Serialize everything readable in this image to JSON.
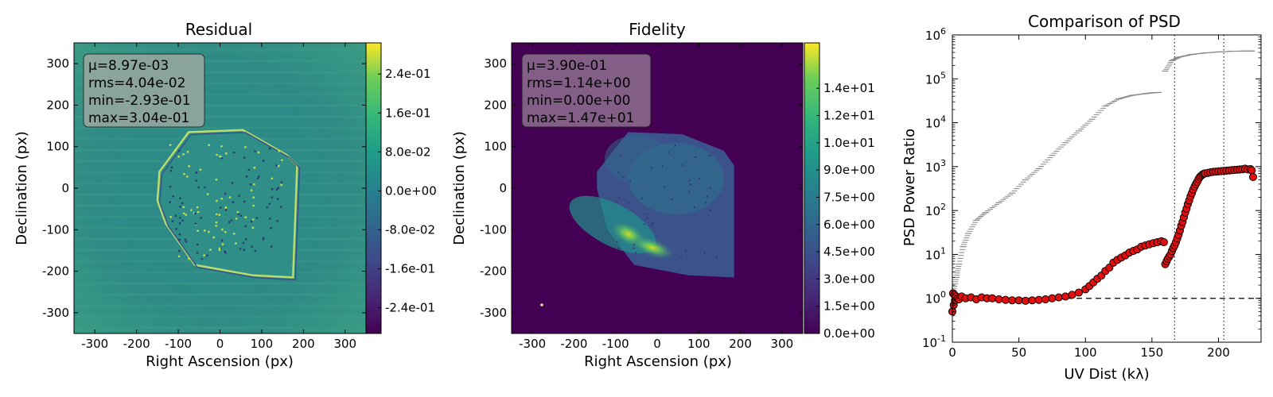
{
  "chart_data": [
    {
      "type": "heatmap",
      "title": "Residual",
      "xlabel": "Right Ascension (px)",
      "ylabel": "Declination (px)",
      "xlim": [
        -350,
        350
      ],
      "ylim": [
        -350,
        350
      ],
      "xticks": [
        "-300",
        "-200",
        "-100",
        "0",
        "100",
        "200",
        "300"
      ],
      "yticks": [
        "-300",
        "-200",
        "-100",
        "0",
        "100",
        "200",
        "300"
      ],
      "colormap": "viridis",
      "colorbar": {
        "range": [
          -0.293,
          0.304
        ],
        "ticks": [
          {
            "value": -0.24,
            "label": "-2.4e-01"
          },
          {
            "value": -0.16,
            "label": "-1.6e-01"
          },
          {
            "value": -0.08,
            "label": "-8.0e-02"
          },
          {
            "value": 0.0,
            "label": "0.0e+00"
          },
          {
            "value": 0.08,
            "label": "8.0e-02"
          },
          {
            "value": 0.16,
            "label": "1.6e-01"
          },
          {
            "value": 0.24,
            "label": "2.4e-01"
          }
        ]
      },
      "stats": [
        "μ=8.97e-03",
        "rms=4.04e-02",
        "min=-2.93e-01",
        "max=3.04e-01"
      ],
      "stats_box_color": "#9aa9a0",
      "background_color": "#2f8a86",
      "mosaic_outline": [
        [
          -145,
          40
        ],
        [
          -75,
          135
        ],
        [
          55,
          140
        ],
        [
          160,
          80
        ],
        [
          185,
          55
        ],
        [
          175,
          -215
        ],
        [
          80,
          -210
        ],
        [
          -60,
          -185
        ],
        [
          -130,
          -85
        ],
        [
          -150,
          -30
        ]
      ]
    },
    {
      "type": "heatmap",
      "title": "Fidelity",
      "xlabel": "Right Ascension (px)",
      "ylabel": "Declination (px)",
      "xlim": [
        -350,
        350
      ],
      "ylim": [
        -350,
        350
      ],
      "xticks": [
        "-300",
        "-200",
        "-100",
        "0",
        "100",
        "200",
        "300"
      ],
      "yticks": [
        "-300",
        "-200",
        "-100",
        "0",
        "100",
        "200",
        "300"
      ],
      "colormap": "viridis",
      "colorbar": {
        "range": [
          0,
          16
        ],
        "ticks": [
          {
            "value": 0.0,
            "label": "0.0e+00"
          },
          {
            "value": 1.5,
            "label": "1.5e+00"
          },
          {
            "value": 3.0,
            "label": "3.0e+00"
          },
          {
            "value": 4.5,
            "label": "4.5e+00"
          },
          {
            "value": 6.0,
            "label": "6.0e+00"
          },
          {
            "value": 7.5,
            "label": "7.5e+00"
          },
          {
            "value": 9.0,
            "label": "9.0e+00"
          },
          {
            "value": 10.5,
            "label": "1.0e+01"
          },
          {
            "value": 12.0,
            "label": "1.2e+01"
          },
          {
            "value": 13.5,
            "label": "1.4e+01"
          }
        ]
      },
      "stats": [
        "μ=3.90e-01",
        "rms=1.14e+00",
        "min=0.00e+00",
        "max=1.47e+01"
      ],
      "stats_box_color": "#8a6a8e",
      "background_color": "#440154",
      "mosaic_outline": [
        [
          -145,
          40
        ],
        [
          -70,
          135
        ],
        [
          60,
          130
        ],
        [
          160,
          90
        ],
        [
          185,
          55
        ],
        [
          185,
          -215
        ],
        [
          75,
          -210
        ],
        [
          -55,
          -185
        ],
        [
          -120,
          -100
        ],
        [
          -145,
          0
        ]
      ]
    },
    {
      "type": "scatter",
      "title": "Comparison of PSD",
      "xlabel": "UV Dist (kλ)",
      "ylabel": "PSD Power Ratio",
      "xlim": [
        0,
        232
      ],
      "ylim": [
        0.1,
        1000000
      ],
      "yscale": "log",
      "xticks": [
        0,
        50,
        100,
        150,
        200
      ],
      "yticks": [
        {
          "mant": "10",
          "exp": "-1"
        },
        {
          "mant": "10",
          "exp": "0"
        },
        {
          "mant": "10",
          "exp": "1"
        },
        {
          "mant": "10",
          "exp": "2"
        },
        {
          "mant": "10",
          "exp": "3"
        },
        {
          "mant": "10",
          "exp": "4"
        },
        {
          "mant": "10",
          "exp": "5"
        },
        {
          "mant": "10",
          "exp": "6"
        }
      ],
      "reference_line_y": 1,
      "vertical_lines_x": [
        167,
        204
      ],
      "gray_series": {
        "color": "#888888",
        "x": [
          1,
          3,
          5,
          8,
          12,
          18,
          25,
          35,
          45,
          55,
          65,
          75,
          85,
          95,
          105,
          115,
          125,
          135,
          145,
          150,
          155,
          160,
          165,
          170,
          180,
          190,
          200,
          210,
          220,
          225
        ],
        "y": [
          1.5,
          3,
          6,
          15,
          30,
          60,
          90,
          150,
          250,
          500,
          900,
          1800,
          3500,
          6500,
          12000,
          24000,
          35000,
          42000,
          46000,
          48000,
          49000,
          150000,
          260000,
          310000,
          360000,
          390000,
          410000,
          425000,
          430000,
          430000
        ]
      },
      "red_series": {
        "color": "#e01010",
        "x": [
          0,
          0.5,
          1,
          1.5,
          2,
          3,
          4,
          5,
          7,
          10,
          14,
          18,
          22,
          26,
          30,
          35,
          40,
          45,
          50,
          55,
          60,
          65,
          70,
          75,
          80,
          85,
          90,
          95,
          100,
          103,
          106,
          109,
          112,
          115,
          118,
          121,
          124,
          127,
          130,
          133,
          136,
          139,
          142,
          145,
          148,
          151,
          154,
          157,
          159,
          160,
          161,
          162,
          163,
          164,
          165,
          166,
          167,
          168,
          169,
          170,
          171,
          172,
          173,
          174,
          175,
          176,
          177,
          178,
          179,
          180,
          181,
          182,
          183,
          184,
          185,
          186,
          187,
          188,
          189,
          190,
          192,
          194,
          196,
          198,
          200,
          202,
          204,
          206,
          208,
          210,
          212,
          214,
          216,
          218,
          220,
          222,
          224,
          225,
          226
        ],
        "y": [
          0.5,
          1.3,
          0.7,
          1.2,
          0.9,
          1.1,
          1.0,
          0.95,
          1.1,
          1.0,
          1.05,
          0.95,
          1.05,
          1.0,
          1.0,
          0.95,
          0.92,
          0.9,
          0.9,
          0.88,
          0.9,
          0.92,
          0.95,
          1.0,
          1.05,
          1.1,
          1.2,
          1.35,
          1.6,
          1.9,
          2.3,
          2.8,
          3.3,
          4.2,
          5.0,
          6.5,
          7.5,
          8.5,
          9.5,
          11,
          12,
          13,
          15,
          16,
          17,
          18,
          19,
          20,
          19,
          6,
          7,
          8,
          9,
          10,
          12,
          14,
          16,
          19,
          23,
          28,
          35,
          45,
          55,
          70,
          90,
          110,
          140,
          170,
          210,
          250,
          300,
          350,
          400,
          450,
          520,
          580,
          620,
          660,
          690,
          700,
          720,
          740,
          760,
          770,
          780,
          790,
          800,
          810,
          820,
          830,
          840,
          850,
          860,
          870,
          900,
          860,
          880,
          820,
          580
        ]
      }
    }
  ]
}
